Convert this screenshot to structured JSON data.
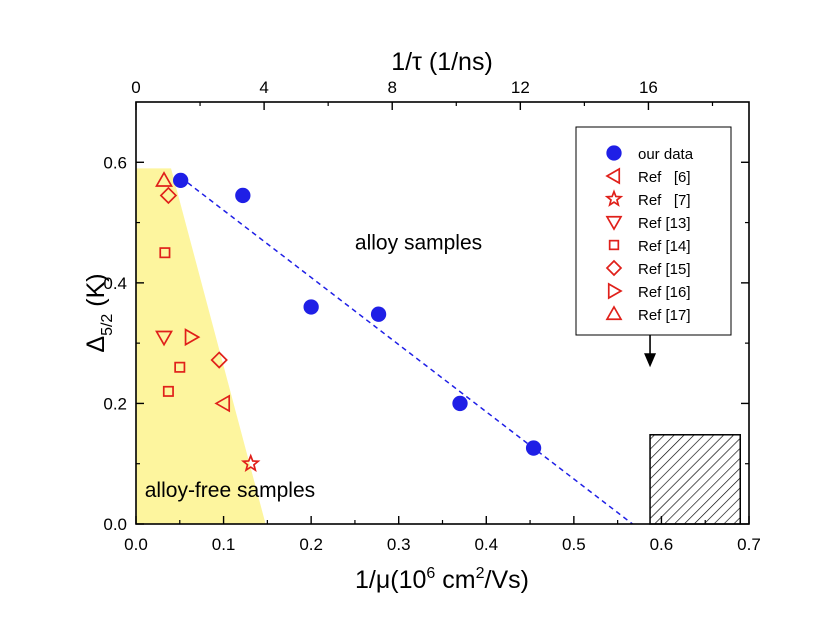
{
  "chart_data": {
    "type": "scatter",
    "xlabel": {
      "prefix": "1/μ(10",
      "sup1": "6",
      "mid": " cm",
      "sup2": "2",
      "suffix": "/Vs)"
    },
    "ylabel": {
      "main": "Δ",
      "sub": "5/2",
      "suffix": " (K)"
    },
    "x2label": "1/τ (1/ns)",
    "xlim": [
      0.0,
      0.7
    ],
    "ylim": [
      0.0,
      0.7
    ],
    "x2lim": [
      0,
      19.14
    ],
    "xticks": [
      0.0,
      0.1,
      0.2,
      0.3,
      0.4,
      0.5,
      0.6,
      0.7
    ],
    "xtick_labels": [
      "0.0",
      "0.1",
      "0.2",
      "0.3",
      "0.4",
      "0.5",
      "0.6",
      "0.7"
    ],
    "yticks": [
      0.0,
      0.2,
      0.4,
      0.6
    ],
    "ytick_labels": [
      "0.0",
      "0.2",
      "0.4",
      "0.6"
    ],
    "x2ticks": [
      0,
      4,
      8,
      12,
      16
    ],
    "x2tick_labels": [
      "0",
      "4",
      "8",
      "12",
      "16"
    ],
    "series": [
      {
        "name": "our data",
        "legend": "our data",
        "marker": "circle",
        "filled": true,
        "color": "#1f1fe6",
        "points": [
          [
            0.051,
            0.57
          ],
          [
            0.122,
            0.545
          ],
          [
            0.2,
            0.36
          ],
          [
            0.277,
            0.348
          ],
          [
            0.37,
            0.2
          ],
          [
            0.454,
            0.126
          ]
        ]
      },
      {
        "name": "Ref [6]",
        "legend": "Ref   [6]",
        "marker": "triangle-left",
        "filled": false,
        "color": "#e0201a",
        "points": [
          [
            0.1,
            0.2
          ]
        ]
      },
      {
        "name": "Ref [7]",
        "legend": "Ref   [7]",
        "marker": "star",
        "filled": false,
        "color": "#e0201a",
        "points": [
          [
            0.131,
            0.1
          ]
        ]
      },
      {
        "name": "Ref [13]",
        "legend": "Ref [13]",
        "marker": "triangle-down",
        "filled": false,
        "color": "#e0201a",
        "points": [
          [
            0.032,
            0.31
          ]
        ]
      },
      {
        "name": "Ref [14]",
        "legend": "Ref [14]",
        "marker": "square",
        "filled": false,
        "color": "#e0201a",
        "points": [
          [
            0.033,
            0.45
          ],
          [
            0.05,
            0.26
          ],
          [
            0.037,
            0.22
          ]
        ]
      },
      {
        "name": "Ref [15]",
        "legend": "Ref [15]",
        "marker": "diamond",
        "filled": false,
        "color": "#e0201a",
        "points": [
          [
            0.037,
            0.545
          ],
          [
            0.095,
            0.272
          ]
        ]
      },
      {
        "name": "Ref [16]",
        "legend": "Ref [16]",
        "marker": "triangle-right",
        "filled": false,
        "color": "#e0201a",
        "points": [
          [
            0.063,
            0.31
          ]
        ]
      },
      {
        "name": "Ref [17]",
        "legend": "Ref [17]",
        "marker": "triangle-up",
        "filled": false,
        "color": "#e0201a",
        "points": [
          [
            0.032,
            0.57
          ]
        ]
      }
    ],
    "fit_line": {
      "style": "dashed",
      "color": "#1f1fe6",
      "from": [
        0.051,
        0.575
      ],
      "to": [
        0.567,
        0.0
      ]
    },
    "shaded_region": {
      "color": "#fdf59e",
      "polygon": [
        [
          0.0,
          0.59
        ],
        [
          0.04,
          0.59
        ],
        [
          0.148,
          0.0
        ],
        [
          0.0,
          0.0
        ]
      ]
    },
    "hatched_box": {
      "x": [
        0.587,
        0.69
      ],
      "y": [
        0.0,
        0.148
      ]
    },
    "arrow": {
      "x": 0.587,
      "from_y": 0.42,
      "to_y": 0.26
    },
    "annotations": [
      {
        "text": "alloy samples",
        "x": 0.25,
        "y": 0.455
      },
      {
        "text": "alloy-free samples",
        "x": 0.01,
        "y": 0.045
      }
    ],
    "legend_position": "top-right"
  }
}
